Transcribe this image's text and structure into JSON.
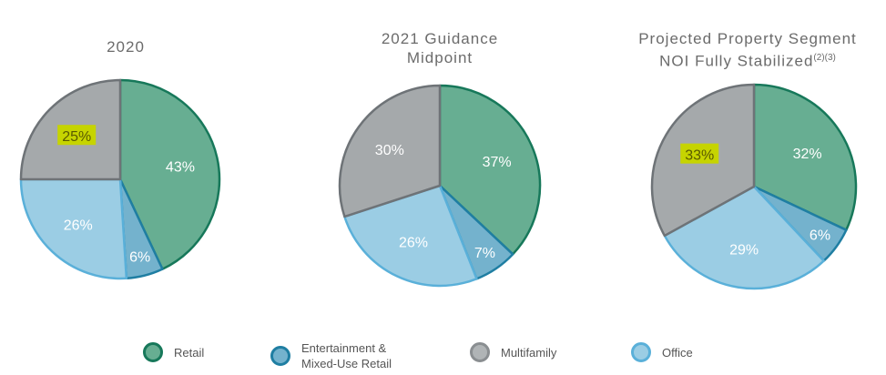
{
  "colors": {
    "Retail": {
      "fill": "#67ae92",
      "stroke": "#17785a"
    },
    "Entertainment & Mixed-Use Retail": {
      "fill": "#74b2cd",
      "stroke": "#1f7ea2"
    },
    "Multifamily": {
      "fill": "#a5a9ab",
      "stroke": "#6e7377"
    },
    "Office": {
      "fill": "#9bcde4",
      "stroke": "#5ab0d9"
    },
    "highlight": "#c6d400"
  },
  "legend": [
    {
      "label": "Retail",
      "fill": "#67ae92",
      "stroke": "#17785a"
    },
    {
      "label": "Entertainment &\nMixed-Use Retail",
      "fill": "#74b2cd",
      "stroke": "#1f7ea2"
    },
    {
      "label": "Multifamily",
      "fill": "#b0b4b6",
      "stroke": "#8a8e91"
    },
    {
      "label": "Office",
      "fill": "#9bcde4",
      "stroke": "#5ab0d9"
    }
  ],
  "chart_data": [
    {
      "type": "pie",
      "title": "2020",
      "superscript": "",
      "slices": [
        {
          "category": "Retail",
          "value": 43,
          "label": "43%"
        },
        {
          "category": "Entertainment & Mixed-Use Retail",
          "value": 6,
          "label": "6%"
        },
        {
          "category": "Office",
          "value": 26,
          "label": "26%"
        },
        {
          "category": "Multifamily",
          "value": 25,
          "label": "25%",
          "highlighted": true
        }
      ]
    },
    {
      "type": "pie",
      "title": "2021 Guidance\nMidpoint",
      "superscript": "",
      "slices": [
        {
          "category": "Retail",
          "value": 37,
          "label": "37%"
        },
        {
          "category": "Entertainment & Mixed-Use Retail",
          "value": 7,
          "label": "7%"
        },
        {
          "category": "Office",
          "value": 26,
          "label": "26%"
        },
        {
          "category": "Multifamily",
          "value": 30,
          "label": "30%"
        }
      ]
    },
    {
      "type": "pie",
      "title": "Projected Property Segment\nNOI Fully Stabilized",
      "superscript": "(2)(3)",
      "slices": [
        {
          "category": "Retail",
          "value": 32,
          "label": "32%"
        },
        {
          "category": "Entertainment & Mixed-Use Retail",
          "value": 6,
          "label": "6%"
        },
        {
          "category": "Office",
          "value": 29,
          "label": "29%"
        },
        {
          "category": "Multifamily",
          "value": 33,
          "label": "33%",
          "highlighted": true
        }
      ]
    }
  ]
}
